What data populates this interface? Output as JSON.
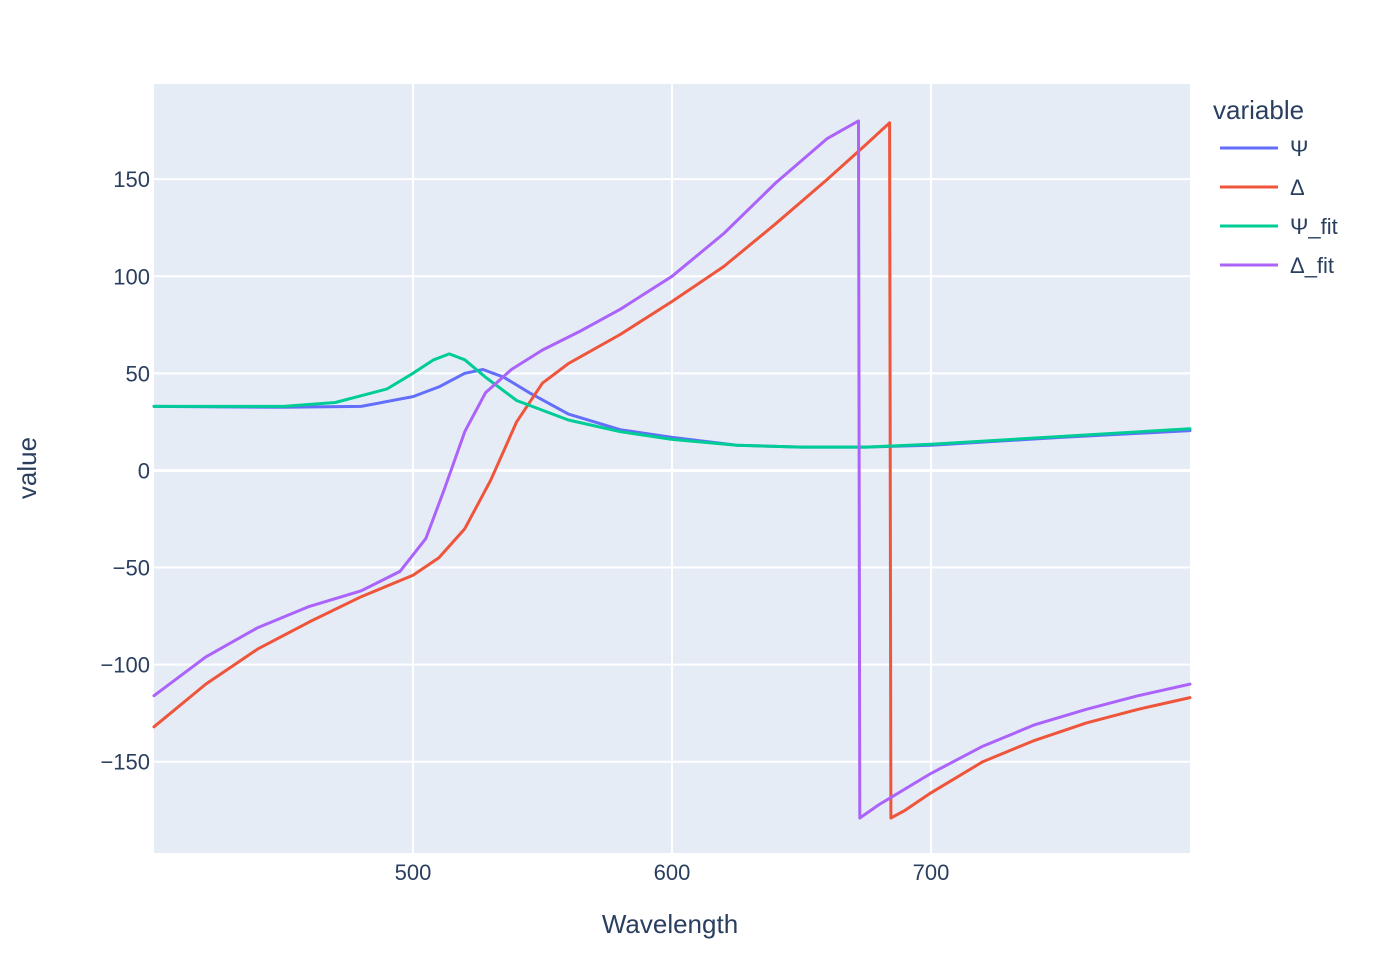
{
  "chart_data": {
    "type": "line",
    "xlabel": "Wavelength",
    "ylabel": "value",
    "xlim": [
      400,
      800
    ],
    "ylim": [
      -197,
      199
    ],
    "xticks": [
      500,
      600,
      700
    ],
    "yticks": [
      -150,
      -100,
      -50,
      0,
      50,
      100,
      150
    ],
    "xtick_labels": [
      "500",
      "600",
      "700"
    ],
    "ytick_labels": [
      "−150",
      "−100",
      "−50",
      "0",
      "50",
      "100",
      "150"
    ],
    "grid": true,
    "plot_background": "#e5ecf6",
    "legend": {
      "title": "variable",
      "placement": "right"
    },
    "series": [
      {
        "name": "Ψ",
        "color": "#636efa",
        "x": [
          400,
          450,
          480,
          500,
          510,
          520,
          527,
          535,
          545,
          560,
          580,
          600,
          625,
          650,
          675,
          700,
          750,
          800
        ],
        "y": [
          33,
          32.5,
          33,
          38,
          43,
          50,
          52,
          48,
          40,
          29,
          21,
          17,
          13,
          12,
          12,
          13,
          17,
          20.5
        ]
      },
      {
        "name": "Δ",
        "color": "#ef553b",
        "x": [
          400,
          420,
          440,
          460,
          480,
          500,
          510,
          520,
          530,
          540,
          550,
          560,
          580,
          600,
          620,
          640,
          660,
          675,
          684,
          684.5,
          690,
          700,
          720,
          740,
          760,
          780,
          800
        ],
        "y": [
          -132,
          -110,
          -92,
          -78,
          -65,
          -54,
          -45,
          -30,
          -5,
          25,
          45,
          55,
          70,
          87,
          105,
          127,
          150,
          168,
          179,
          -179,
          -175,
          -166,
          -150,
          -139,
          -130,
          -123,
          -117
        ]
      },
      {
        "name": "Ψ_fit",
        "color": "#00cc96",
        "x": [
          400,
          450,
          470,
          490,
          500,
          508,
          514,
          520,
          528,
          540,
          560,
          580,
          600,
          625,
          650,
          675,
          700,
          750,
          800
        ],
        "y": [
          33,
          33,
          35,
          42,
          50,
          57,
          60,
          57,
          48,
          36,
          26,
          20,
          16,
          13,
          12,
          12,
          13.5,
          17.5,
          21.5
        ]
      },
      {
        "name": "Δ_fit",
        "color": "#ab63fa",
        "x": [
          400,
          420,
          440,
          460,
          480,
          495,
          505,
          512,
          520,
          528,
          538,
          550,
          565,
          580,
          600,
          620,
          640,
          660,
          672,
          672.5,
          680,
          700,
          720,
          740,
          760,
          780,
          800
        ],
        "y": [
          -116,
          -96,
          -81,
          -70,
          -62,
          -52,
          -35,
          -10,
          20,
          40,
          52,
          62,
          72,
          83,
          100,
          122,
          148,
          171,
          180,
          -179,
          -172,
          -156,
          -142,
          -131,
          -123,
          -116,
          -110
        ]
      }
    ]
  }
}
